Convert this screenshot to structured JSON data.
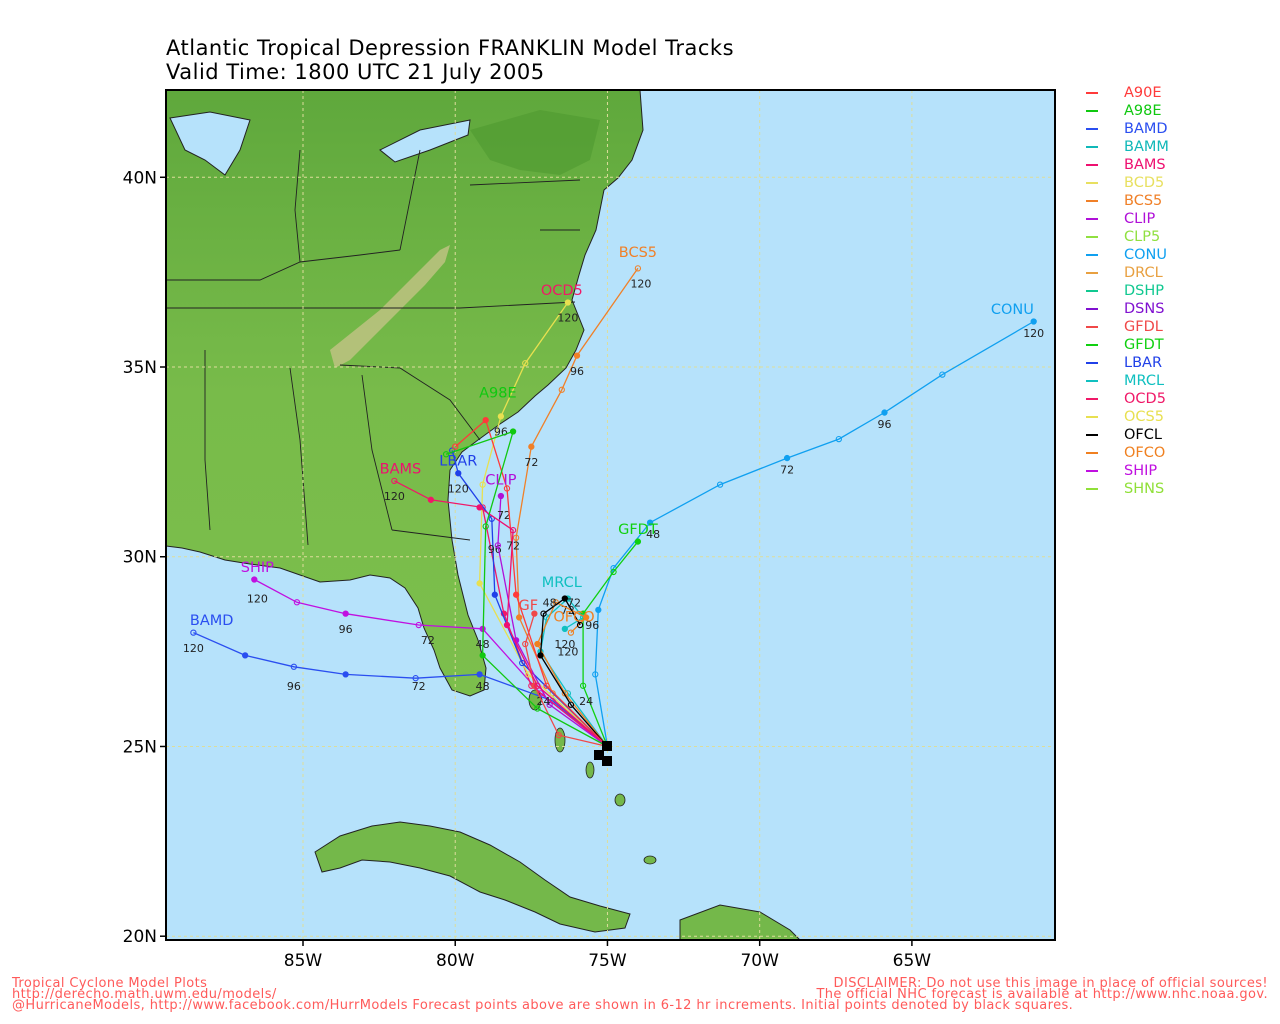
{
  "title": {
    "line1": "Atlantic Tropical Depression FRANKLIN Model Tracks",
    "line2": "Valid Time: 1800 UTC 21 July 2005"
  },
  "axes": {
    "lat_ticks": [
      {
        "value": 40,
        "label": "40N"
      },
      {
        "value": 35,
        "label": "35N"
      },
      {
        "value": 30,
        "label": "30N"
      },
      {
        "value": 25,
        "label": "25N"
      },
      {
        "value": 20,
        "label": "20N"
      }
    ],
    "lon_ticks": [
      {
        "value": -85,
        "label": "85W"
      },
      {
        "value": -80,
        "label": "80W"
      },
      {
        "value": -75,
        "label": "75W"
      },
      {
        "value": -70,
        "label": "70W"
      },
      {
        "value": -65,
        "label": "65W"
      }
    ],
    "lon_range": [
      -89.5,
      -60.3
    ],
    "lat_range": [
      19.9,
      42.3
    ]
  },
  "colors": {
    "ocean": "#b6e2fb",
    "land": "#74b84a",
    "grid": "#dddd9a"
  },
  "legend": [
    {
      "name": "A90E",
      "color": "#ff3a3a"
    },
    {
      "name": "A98E",
      "color": "#10c810"
    },
    {
      "name": "BAMD",
      "color": "#2a4ef0"
    },
    {
      "name": "BAMM",
      "color": "#10b8b8"
    },
    {
      "name": "BAMS",
      "color": "#ee1070"
    },
    {
      "name": "BCD5",
      "color": "#e8e060"
    },
    {
      "name": "BCS5",
      "color": "#f08028"
    },
    {
      "name": "CLIP",
      "color": "#b010d8"
    },
    {
      "name": "CLP5",
      "color": "#90e040"
    },
    {
      "name": "CONU",
      "color": "#10a0f0"
    },
    {
      "name": "DRCL",
      "color": "#e8a040"
    },
    {
      "name": "DSHP",
      "color": "#10c890"
    },
    {
      "name": "DSNS",
      "color": "#8010d0"
    },
    {
      "name": "GFDL",
      "color": "#f04848"
    },
    {
      "name": "GFDT",
      "color": "#10d010"
    },
    {
      "name": "LBAR",
      "color": "#2040e8"
    },
    {
      "name": "MRCL",
      "color": "#10c0c0"
    },
    {
      "name": "OCD5",
      "color": "#f01868"
    },
    {
      "name": "OCS5",
      "color": "#e8e050"
    },
    {
      "name": "OFCL",
      "color": "#000000"
    },
    {
      "name": "OFCO",
      "color": "#f08020"
    },
    {
      "name": "SHIP",
      "color": "#c010e0"
    },
    {
      "name": "SHNS",
      "color": "#90e038"
    }
  ],
  "map_labels": {
    "BCS5": "BCS5",
    "OCD5": "OCD5",
    "CONU": "CONU",
    "BAMS": "BAMS",
    "LBAR": "LBAR",
    "CLIP": "CLIP",
    "GFDT": "GFDT",
    "MRCL": "MRCL",
    "BAMD": "BAMD",
    "SHIP": "SHIP",
    "GFDL": "GF",
    "OFCO": "OFCO",
    "A98E": "A98E"
  },
  "tracks": [
    {
      "model": "BAMD",
      "points": [
        {
          "lon": -75,
          "lat": 25
        },
        {
          "lon": -76.8,
          "lat": 26.2
        },
        {
          "lon": -79.2,
          "lat": 26.9
        },
        {
          "lon": -81.3,
          "lat": 26.8
        },
        {
          "lon": -83.6,
          "lat": 26.9
        },
        {
          "lon": -85.3,
          "lat": 27.1
        },
        {
          "lon": -86.9,
          "lat": 27.4
        },
        {
          "lon": -88.6,
          "lat": 28.0
        }
      ],
      "hours": [
        {
          "h": "48",
          "lon": -79.1,
          "lat": 26.6
        },
        {
          "h": "72",
          "lon": -81.2,
          "lat": 26.6
        },
        {
          "h": "96",
          "lon": -85.3,
          "lat": 26.6
        },
        {
          "h": "120",
          "lon": -88.6,
          "lat": 27.6
        }
      ]
    },
    {
      "model": "SHIP",
      "points": [
        {
          "lon": -75,
          "lat": 25
        },
        {
          "lon": -77.2,
          "lat": 26.4
        },
        {
          "lon": -79.1,
          "lat": 28.1
        },
        {
          "lon": -81.2,
          "lat": 28.2
        },
        {
          "lon": -83.6,
          "lat": 28.5
        },
        {
          "lon": -85.2,
          "lat": 28.8
        },
        {
          "lon": -86.6,
          "lat": 29.4
        }
      ],
      "hours": [
        {
          "h": "48",
          "lon": -79.1,
          "lat": 27.7
        },
        {
          "h": "72",
          "lon": -80.9,
          "lat": 27.8
        },
        {
          "h": "96",
          "lon": -83.6,
          "lat": 28.1
        },
        {
          "h": "120",
          "lon": -86.5,
          "lat": 28.9
        }
      ]
    },
    {
      "model": "CONU",
      "points": [
        {
          "lon": -75,
          "lat": 25
        },
        {
          "lon": -75.4,
          "lat": 26.9
        },
        {
          "lon": -75.3,
          "lat": 28.6
        },
        {
          "lon": -74.8,
          "lat": 29.7
        },
        {
          "lon": -73.6,
          "lat": 30.9
        },
        {
          "lon": -71.3,
          "lat": 31.9
        },
        {
          "lon": -69.1,
          "lat": 32.6
        },
        {
          "lon": -67.4,
          "lat": 33.1
        },
        {
          "lon": -65.9,
          "lat": 33.8
        },
        {
          "lon": -64.0,
          "lat": 34.8
        },
        {
          "lon": -61.0,
          "lat": 36.2
        }
      ],
      "hours": [
        {
          "h": "48",
          "lon": -73.5,
          "lat": 30.6
        },
        {
          "h": "72",
          "lon": -69.1,
          "lat": 32.3
        },
        {
          "h": "96",
          "lon": -65.9,
          "lat": 33.5
        },
        {
          "h": "120",
          "lon": -61.0,
          "lat": 35.9
        }
      ]
    },
    {
      "model": "GFDT",
      "points": [
        {
          "lon": -75,
          "lat": 25
        },
        {
          "lon": -75.8,
          "lat": 26.6
        },
        {
          "lon": -75.8,
          "lat": 28.5
        },
        {
          "lon": -74.8,
          "lat": 29.6
        },
        {
          "lon": -74.0,
          "lat": 30.4
        }
      ],
      "hours": [
        {
          "h": "24",
          "lon": -75.7,
          "lat": 26.2
        }
      ]
    },
    {
      "model": "BCS5",
      "points": [
        {
          "lon": -75,
          "lat": 25
        },
        {
          "lon": -76.8,
          "lat": 26.4
        },
        {
          "lon": -77.9,
          "lat": 28.4
        },
        {
          "lon": -78.0,
          "lat": 30.5
        },
        {
          "lon": -77.5,
          "lat": 32.9
        },
        {
          "lon": -76.5,
          "lat": 34.4
        },
        {
          "lon": -76.0,
          "lat": 35.3
        },
        {
          "lon": -74.0,
          "lat": 37.6
        }
      ],
      "hours": [
        {
          "h": "72",
          "lon": -77.5,
          "lat": 32.5
        },
        {
          "h": "96",
          "lon": -76.0,
          "lat": 34.9
        },
        {
          "h": "120",
          "lon": -73.9,
          "lat": 37.2
        }
      ]
    },
    {
      "model": "OCD5",
      "points": [
        {
          "lon": -75,
          "lat": 25
        },
        {
          "lon": -77.5,
          "lat": 26.6
        },
        {
          "lon": -78.4,
          "lat": 28.5
        },
        {
          "lon": -79.1,
          "lat": 31.3
        },
        {
          "lon": -80.8,
          "lat": 31.5
        },
        {
          "lon": -82.0,
          "lat": 32.0
        }
      ],
      "hours": [
        {
          "h": "120",
          "lon": -82.0,
          "lat": 31.6
        }
      ]
    },
    {
      "model": "OCS5",
      "points": [
        {
          "lon": -75,
          "lat": 25
        },
        {
          "lon": -77.6,
          "lat": 26.9
        },
        {
          "lon": -79.2,
          "lat": 29.3
        },
        {
          "lon": -79.1,
          "lat": 31.9
        },
        {
          "lon": -78.5,
          "lat": 33.7
        },
        {
          "lon": -77.7,
          "lat": 35.1
        },
        {
          "lon": -76.3,
          "lat": 36.7
        }
      ],
      "hours": [
        {
          "h": "96",
          "lon": -78.5,
          "lat": 33.3
        },
        {
          "h": "120",
          "lon": -76.3,
          "lat": 36.3
        }
      ]
    },
    {
      "model": "LBAR",
      "points": [
        {
          "lon": -75,
          "lat": 25
        },
        {
          "lon": -77.8,
          "lat": 27.2
        },
        {
          "lon": -78.7,
          "lat": 29.0
        },
        {
          "lon": -78.8,
          "lat": 31.0
        },
        {
          "lon": -79.9,
          "lat": 32.2
        },
        {
          "lon": -80.1,
          "lat": 32.8
        }
      ],
      "hours": [
        {
          "h": "96",
          "lon": -78.7,
          "lat": 30.2
        },
        {
          "h": "120",
          "lon": -79.9,
          "lat": 31.8
        }
      ]
    },
    {
      "model": "CLIP",
      "points": [
        {
          "lon": -75,
          "lat": 25
        },
        {
          "lon": -76.9,
          "lat": 26.1
        },
        {
          "lon": -78.0,
          "lat": 27.8
        },
        {
          "lon": -78.6,
          "lat": 30.3
        },
        {
          "lon": -78.5,
          "lat": 31.6
        }
      ],
      "hours": [
        {
          "h": "72",
          "lon": -78.4,
          "lat": 31.1
        }
      ]
    },
    {
      "model": "MRCL",
      "points": [
        {
          "lon": -75,
          "lat": 25
        },
        {
          "lon": -76.3,
          "lat": 26.4
        },
        {
          "lon": -77.2,
          "lat": 27.5
        },
        {
          "lon": -77.0,
          "lat": 28.4
        },
        {
          "lon": -76.3,
          "lat": 28.9
        },
        {
          "lon": -75.8,
          "lat": 28.4
        },
        {
          "lon": -76.4,
          "lat": 28.1
        }
      ],
      "hours": [
        {
          "h": "72",
          "lon": -76.3,
          "lat": 28.6
        },
        {
          "h": "120",
          "lon": -76.4,
          "lat": 27.7
        }
      ]
    },
    {
      "model": "OFCO",
      "points": [
        {
          "lon": -75,
          "lat": 25
        },
        {
          "lon": -76.4,
          "lat": 26.4
        },
        {
          "lon": -77.3,
          "lat": 27.7
        },
        {
          "lon": -76.7,
          "lat": 28.8
        },
        {
          "lon": -75.7,
          "lat": 28.4
        },
        {
          "lon": -76.2,
          "lat": 28.0
        }
      ],
      "hours": [
        {
          "h": "96",
          "lon": -75.5,
          "lat": 28.2
        }
      ]
    },
    {
      "model": "OFCL",
      "points": [
        {
          "lon": -75,
          "lat": 25
        },
        {
          "lon": -76.2,
          "lat": 26.1
        },
        {
          "lon": -77.2,
          "lat": 27.4
        },
        {
          "lon": -77.1,
          "lat": 28.5
        },
        {
          "lon": -76.4,
          "lat": 28.9
        },
        {
          "lon": -75.9,
          "lat": 28.2
        }
      ],
      "hours": [
        {
          "h": "24",
          "lon": -77.1,
          "lat": 26.2
        },
        {
          "h": "48",
          "lon": -76.9,
          "lat": 28.8
        },
        {
          "h": "72",
          "lon": -76.1,
          "lat": 28.8
        },
        {
          "h": "120",
          "lon": -76.3,
          "lat": 27.5
        }
      ]
    },
    {
      "model": "A90E",
      "points": [
        {
          "lon": -75,
          "lat": 25
        },
        {
          "lon": -77.0,
          "lat": 26.6
        },
        {
          "lon": -78.0,
          "lat": 29.0
        },
        {
          "lon": -78.3,
          "lat": 31.8
        },
        {
          "lon": -79.0,
          "lat": 33.6
        },
        {
          "lon": -80.0,
          "lat": 32.9
        }
      ],
      "hours": []
    },
    {
      "model": "GFDL",
      "points": [
        {
          "lon": -75,
          "lat": 25
        },
        {
          "lon": -76.6,
          "lat": 25.3
        },
        {
          "lon": -77.4,
          "lat": 26.6
        },
        {
          "lon": -77.7,
          "lat": 27.7
        },
        {
          "lon": -77.4,
          "lat": 28.5
        }
      ],
      "hours": []
    },
    {
      "model": "BAMS",
      "points": [
        {
          "lon": -75,
          "lat": 25
        },
        {
          "lon": -77.3,
          "lat": 26.6
        },
        {
          "lon": -78.3,
          "lat": 28.2
        },
        {
          "lon": -78.1,
          "lat": 30.7
        },
        {
          "lon": -79.2,
          "lat": 31.3
        }
      ],
      "hours": [
        {
          "h": "72",
          "lon": -78.1,
          "lat": 30.3
        }
      ]
    },
    {
      "model": "A98E",
      "points": [
        {
          "lon": -75,
          "lat": 25
        },
        {
          "lon": -77.3,
          "lat": 26.0
        },
        {
          "lon": -79.1,
          "lat": 27.4
        },
        {
          "lon": -79.0,
          "lat": 30.8
        },
        {
          "lon": -78.1,
          "lat": 33.3
        },
        {
          "lon": -80.3,
          "lat": 32.7
        }
      ],
      "hours": []
    }
  ],
  "footer": {
    "left": [
      "Tropical Cyclone Model Plots",
      "http://derecho.math.uwm.edu/models/",
      "@HurricaneModels, http://www.facebook.com/HurrModels  Forecast points above are shown in 6-12 hr increments. Initial points denoted by black squares."
    ],
    "right": [
      "DISCLAIMER: Do not use this image in place of official sources!",
      "The official NHC forecast is available at http://www.nhc.noaa.gov."
    ]
  }
}
